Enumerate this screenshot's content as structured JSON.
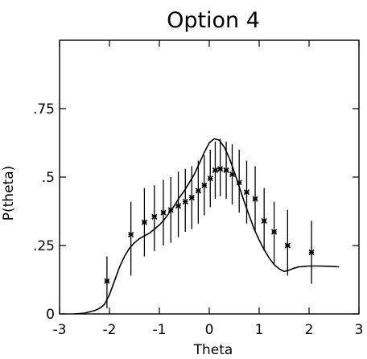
{
  "chart_data": {
    "type": "line",
    "title": "Option 4",
    "xlabel": "Theta",
    "ylabel": "P(theta)",
    "xlim": [
      -3,
      3
    ],
    "ylim": [
      0,
      1
    ],
    "grid": false,
    "x_ticks": [
      {
        "value": -3,
        "label": "-3"
      },
      {
        "value": -2,
        "label": "-2"
      },
      {
        "value": -1,
        "label": "-1"
      },
      {
        "value": 0,
        "label": "0"
      },
      {
        "value": 1,
        "label": "1"
      },
      {
        "value": 2,
        "label": "2"
      },
      {
        "value": 3,
        "label": "3"
      }
    ],
    "y_ticks": [
      {
        "value": 0,
        "label": "0"
      },
      {
        "value": 0.25,
        "label": ".25"
      },
      {
        "value": 0.5,
        "label": ".5"
      },
      {
        "value": 0.75,
        "label": ".75"
      }
    ],
    "series": [
      {
        "type": "line",
        "x": [
          -2.7,
          -2.5,
          -2.3,
          -2.2,
          -2.1,
          -2.0,
          -1.9,
          -1.8,
          -1.7,
          -1.6,
          -1.5,
          -1.4,
          -1.3,
          -1.2,
          -1.1,
          -1.0,
          -0.9,
          -0.8,
          -0.7,
          -0.6,
          -0.5,
          -0.4,
          -0.3,
          -0.2,
          -0.1,
          0.0,
          0.1,
          0.2,
          0.3,
          0.4,
          0.5,
          0.6,
          0.7,
          0.8,
          0.9,
          1.0,
          1.1,
          1.2,
          1.3,
          1.4,
          1.5,
          1.6,
          1.7,
          1.8,
          2.0,
          2.2,
          2.4,
          2.6
        ],
        "values": [
          0.0,
          0.003,
          0.012,
          0.02,
          0.035,
          0.07,
          0.12,
          0.17,
          0.21,
          0.24,
          0.26,
          0.275,
          0.285,
          0.295,
          0.31,
          0.325,
          0.345,
          0.37,
          0.395,
          0.425,
          0.45,
          0.48,
          0.51,
          0.55,
          0.59,
          0.625,
          0.64,
          0.635,
          0.61,
          0.57,
          0.52,
          0.465,
          0.41,
          0.36,
          0.31,
          0.27,
          0.235,
          0.205,
          0.18,
          0.165,
          0.155,
          0.16,
          0.167,
          0.172,
          0.175,
          0.175,
          0.174,
          0.172
        ]
      },
      {
        "type": "errorbar",
        "points": [
          {
            "x": -2.05,
            "y": 0.12,
            "lo": 0.02,
            "hi": 0.21
          },
          {
            "x": -1.57,
            "y": 0.29,
            "lo": 0.14,
            "hi": 0.41
          },
          {
            "x": -1.3,
            "y": 0.335,
            "lo": 0.21,
            "hi": 0.46
          },
          {
            "x": -1.1,
            "y": 0.355,
            "lo": 0.23,
            "hi": 0.47
          },
          {
            "x": -0.92,
            "y": 0.37,
            "lo": 0.25,
            "hi": 0.49
          },
          {
            "x": -0.77,
            "y": 0.38,
            "lo": 0.26,
            "hi": 0.5
          },
          {
            "x": -0.62,
            "y": 0.395,
            "lo": 0.28,
            "hi": 0.52
          },
          {
            "x": -0.48,
            "y": 0.41,
            "lo": 0.3,
            "hi": 0.53
          },
          {
            "x": -0.35,
            "y": 0.425,
            "lo": 0.31,
            "hi": 0.54
          },
          {
            "x": -0.22,
            "y": 0.45,
            "lo": 0.33,
            "hi": 0.56
          },
          {
            "x": -0.1,
            "y": 0.47,
            "lo": 0.36,
            "hi": 0.58
          },
          {
            "x": 0.02,
            "y": 0.495,
            "lo": 0.39,
            "hi": 0.6
          },
          {
            "x": 0.12,
            "y": 0.525,
            "lo": 0.42,
            "hi": 0.63
          },
          {
            "x": 0.22,
            "y": 0.53,
            "lo": 0.43,
            "hi": 0.64
          },
          {
            "x": 0.34,
            "y": 0.525,
            "lo": 0.42,
            "hi": 0.63
          },
          {
            "x": 0.46,
            "y": 0.51,
            "lo": 0.4,
            "hi": 0.62
          },
          {
            "x": 0.6,
            "y": 0.48,
            "lo": 0.37,
            "hi": 0.6
          },
          {
            "x": 0.75,
            "y": 0.445,
            "lo": 0.33,
            "hi": 0.56
          },
          {
            "x": 0.92,
            "y": 0.42,
            "lo": 0.3,
            "hi": 0.54
          },
          {
            "x": 1.1,
            "y": 0.34,
            "lo": 0.23,
            "hi": 0.46
          },
          {
            "x": 1.3,
            "y": 0.3,
            "lo": 0.18,
            "hi": 0.41
          },
          {
            "x": 1.57,
            "y": 0.25,
            "lo": 0.14,
            "hi": 0.38
          },
          {
            "x": 2.05,
            "y": 0.225,
            "lo": 0.11,
            "hi": 0.34
          }
        ]
      }
    ]
  }
}
